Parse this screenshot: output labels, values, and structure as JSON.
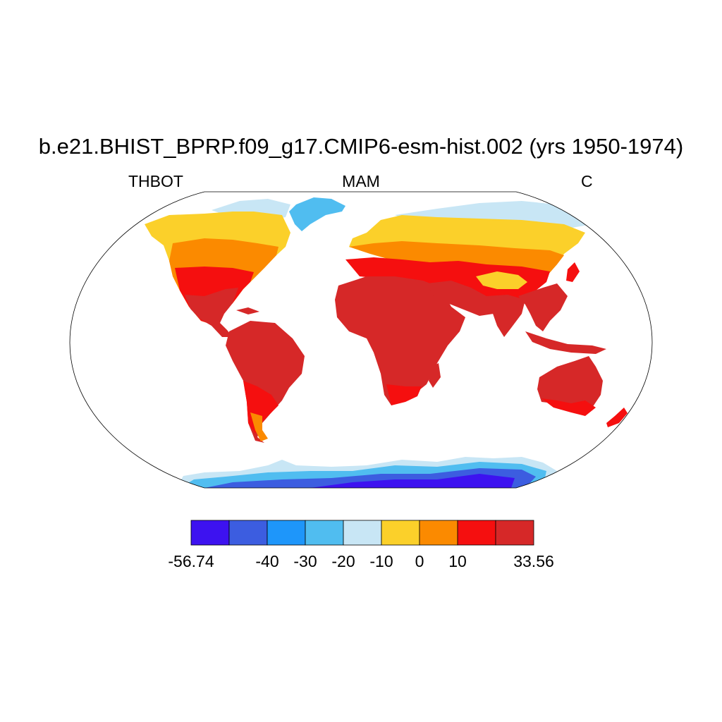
{
  "title": "b.e21.BHIST_BPRP.f09_g17.CMIP6-esm-hist.002 (yrs 1950-1974)",
  "left_label": "THBOT",
  "center_label": "MAM",
  "right_label": "C",
  "colorbar": {
    "colors": [
      "#3d12f0",
      "#3c5de0",
      "#1e96fa",
      "#50bdf0",
      "#c8e6f5",
      "#fbd02a",
      "#fb8a00",
      "#f50f0f",
      "#d62828"
    ],
    "tick_labels": [
      "-56.74",
      "-40",
      "-30",
      "-20",
      "-10",
      "0",
      "10",
      "33.56"
    ]
  }
}
